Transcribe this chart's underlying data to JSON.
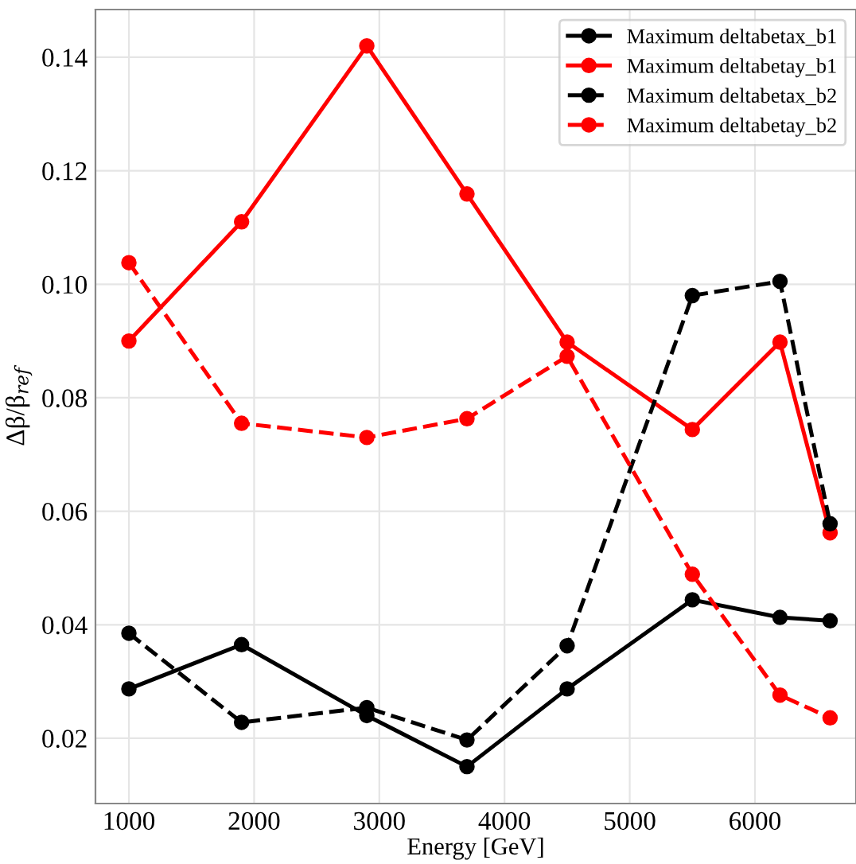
{
  "chart_data": {
    "type": "line",
    "xlabel": "Energy [GeV]",
    "ylabel": "Δβ/β$_{ref}$",
    "x": [
      1000,
      1900,
      2900,
      3700,
      4500,
      5500,
      6200,
      6600
    ],
    "series": [
      {
        "name": "Maximum deltabetax_b1",
        "color": "#000000",
        "line_style": "solid",
        "values": [
          0.0287,
          0.0365,
          0.024,
          0.015,
          0.0287,
          0.0444,
          0.0413,
          0.0407
        ]
      },
      {
        "name": "Maximum deltabetay_b1",
        "color": "#ff0000",
        "line_style": "solid",
        "values": [
          0.09,
          0.111,
          0.142,
          0.1159,
          0.0898,
          0.0744,
          0.0898,
          0.0562
        ]
      },
      {
        "name": "Maximum deltabetax_b2",
        "color": "#000000",
        "line_style": "dashed",
        "values": [
          0.0385,
          0.0228,
          0.0254,
          0.0197,
          0.0363,
          0.098,
          0.1005,
          0.0578
        ]
      },
      {
        "name": "Maximum deltabetay_b2",
        "color": "#ff0000",
        "line_style": "dashed",
        "values": [
          0.1038,
          0.0755,
          0.073,
          0.0763,
          0.0873,
          0.0489,
          0.0276,
          0.0236
        ]
      }
    ],
    "xlim": [
      733,
      6807
    ],
    "ylim": [
      0.0085,
      0.1484
    ],
    "xticks": [
      1000,
      2000,
      3000,
      4000,
      5000,
      6000
    ],
    "yticks": [
      0.02,
      0.04,
      0.06,
      0.08,
      {
        "value": 0.1,
        "label": "0.10"
      },
      0.12,
      0.14
    ],
    "grid": true,
    "legend": "top right",
    "marker": "circle"
  }
}
